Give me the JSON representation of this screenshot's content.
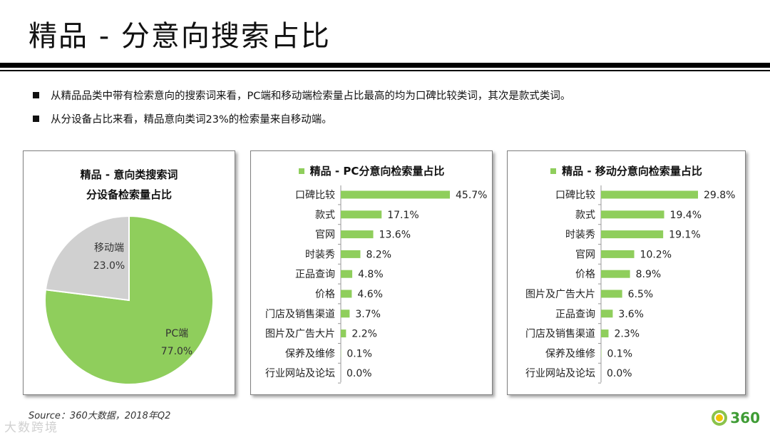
{
  "header": {
    "title": "精品 - 分意向搜索占比"
  },
  "bullets": [
    "从精品品类中带有检索意向的搜索词来看，PC端和移动端检索量占比最高的均为口碑比较类词，其次是款式类词。",
    "从分设备占比来看，精品意向类词23%的检索量来自移动端。"
  ],
  "colors": {
    "green": "#8fce5c",
    "gray": "#d0d0d0"
  },
  "chart_data": [
    {
      "type": "pie",
      "title": "精品 - 意向类搜索词 分设备检索量占比",
      "title_lines": [
        "精品 - 意向类搜索词",
        "分设备检索量占比"
      ],
      "categories": [
        "PC端",
        "移动端"
      ],
      "values": [
        77.0,
        23.0
      ],
      "value_labels": [
        "77.0%",
        "23.0%"
      ]
    },
    {
      "type": "bar",
      "orientation": "horizontal",
      "title": "精品 - PC分意向检索量占比",
      "legend": "精品 - PC分意向检索量占比",
      "categories": [
        "口碑比较",
        "款式",
        "官网",
        "时装秀",
        "正品查询",
        "价格",
        "门店及销售渠道",
        "图片及广告大片",
        "保养及维修",
        "行业网站及论坛"
      ],
      "values": [
        45.7,
        17.1,
        13.6,
        8.2,
        4.8,
        4.6,
        3.7,
        2.2,
        0.1,
        0.0
      ],
      "value_labels": [
        "45.7%",
        "17.1%",
        "13.6%",
        "8.2%",
        "4.8%",
        "4.6%",
        "3.7%",
        "2.2%",
        "0.1%",
        "0.0%"
      ],
      "xlim": [
        0,
        45.7
      ]
    },
    {
      "type": "bar",
      "orientation": "horizontal",
      "title": "精品 - 移动分意向检索量占比",
      "legend": "精品 - 移动分意向检索量占比",
      "categories": [
        "口碑比较",
        "款式",
        "时装秀",
        "官网",
        "价格",
        "图片及广告大片",
        "正品查询",
        "门店及销售渠道",
        "保养及维修",
        "行业网站及论坛"
      ],
      "values": [
        29.8,
        19.4,
        19.1,
        10.2,
        8.9,
        6.5,
        3.6,
        2.3,
        0.1,
        0.0
      ],
      "value_labels": [
        "29.8%",
        "19.4%",
        "19.1%",
        "10.2%",
        "8.9%",
        "6.5%",
        "3.6%",
        "2.3%",
        "0.1%",
        "0.0%"
      ],
      "xlim": [
        0,
        29.8
      ]
    }
  ],
  "footer": {
    "source": "Source：360大数据，2018年Q2",
    "watermark": "大数跨境",
    "logo_text": "360"
  }
}
